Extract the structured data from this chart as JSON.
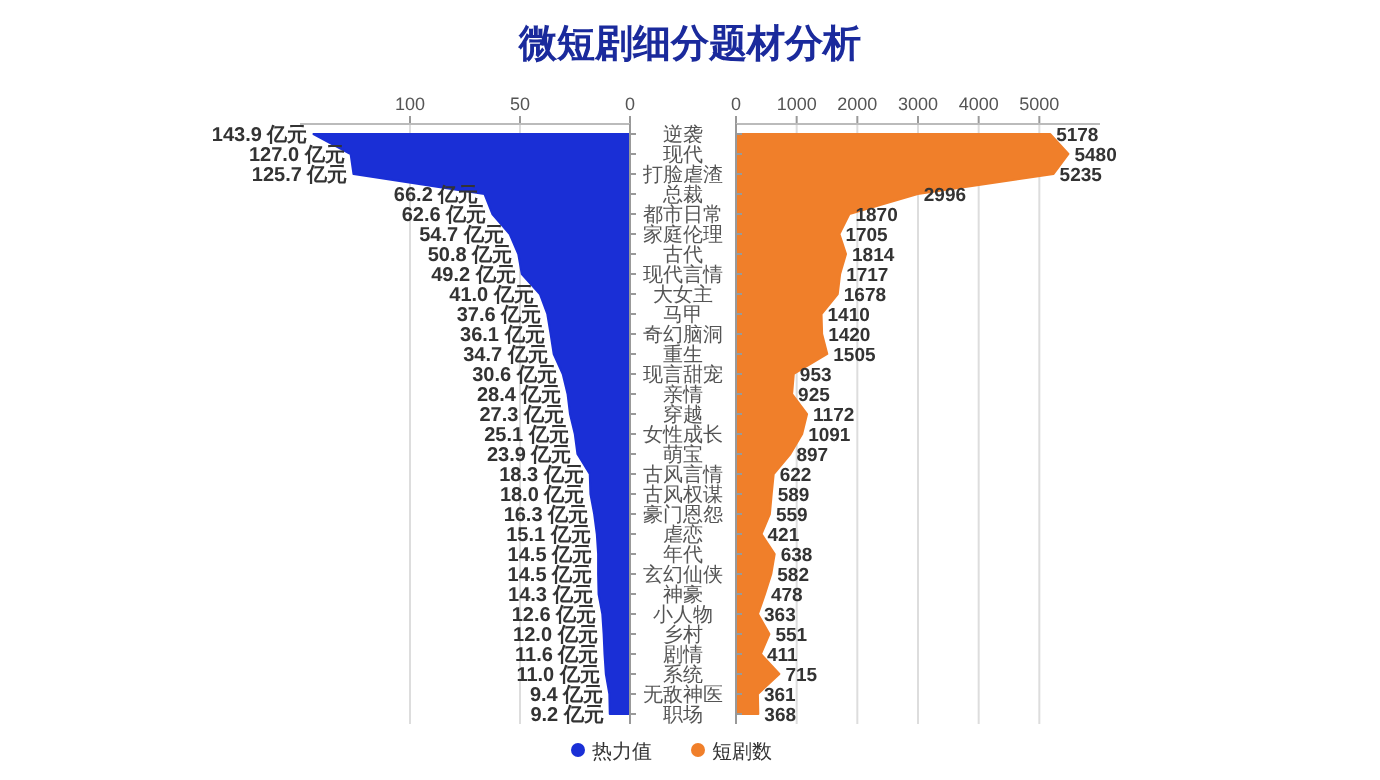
{
  "chart_data": [
    {
      "type": "area",
      "orientation": "horizontal",
      "title": "微短剧细分题材分析",
      "categories": [
        null,
        null,
        null,
        null,
        null,
        null,
        null,
        null,
        null,
        null,
        null,
        null,
        null,
        null,
        null,
        null,
        null,
        null,
        null,
        null,
        null,
        null,
        null,
        null,
        null,
        null,
        null,
        null,
        null,
        null
      ],
      "series": [
        {
          "name": "热力值",
          "color": "#1a2fd6",
          "values": [
            143.9,
            127.0,
            125.7,
            66.2,
            62.6,
            54.7,
            50.8,
            49.2,
            41.0,
            37.6,
            36.1,
            34.7,
            30.6,
            28.4,
            27.3,
            25.1,
            23.9,
            18.3,
            18.0,
            16.3,
            15.1,
            14.5,
            14.5,
            14.3,
            12.6,
            12.0,
            11.6,
            11.0,
            9.4,
            9.2
          ],
          "value_labels": [
            "143.9 亿元",
            "127.0 亿元",
            "125.7 亿元",
            "66.2 亿元",
            "62.6 亿元",
            "54.7 亿元",
            "50.8 亿元",
            "49.2 亿元",
            "41.0 亿元",
            "37.6 亿元",
            "36.1 亿元",
            "34.7 亿元",
            "30.6 亿元",
            "28.4 亿元",
            "27.3 亿元",
            "25.1 亿元",
            "23.9 亿元",
            "18.3 亿元",
            "18.0 亿元",
            "16.3 亿元",
            "15.1 亿元",
            "14.5 亿元",
            "14.5 亿元",
            "14.3 亿元",
            "12.6 亿元",
            "12.0 亿元",
            "11.6 亿元",
            "11.0 亿元",
            "9.4 亿元",
            "9.2 亿元"
          ]
        }
      ],
      "xlim": [
        150,
        0
      ],
      "xticks": [
        0,
        50,
        100
      ],
      "grid": "x",
      "tick_labels": "x",
      "legend": "bottom"
    },
    {
      "type": "area",
      "orientation": "horizontal",
      "categories": [
        "逆袭",
        "现代",
        "打脸虐渣",
        "总裁",
        "都市日常",
        "家庭伦理",
        "古代",
        "现代言情",
        "大女主",
        "马甲",
        "奇幻脑洞",
        "重生",
        "现言甜宠",
        "亲情",
        "穿越",
        "女性成长",
        "萌宝",
        "古风言情",
        "古风权谋",
        "豪门恩怨",
        "虐恋",
        "年代",
        "玄幻仙侠",
        "神豪",
        "小人物",
        "乡村",
        "剧情",
        "系统",
        "无敌神医",
        "职场"
      ],
      "series": [
        {
          "name": "短剧数",
          "color": "#f07f2a",
          "values": [
            5178,
            5480,
            5235,
            2996,
            1870,
            1705,
            1814,
            1717,
            1678,
            1410,
            1420,
            1505,
            953,
            925,
            1172,
            1091,
            897,
            622,
            589,
            559,
            421,
            638,
            582,
            478,
            363,
            551,
            411,
            715,
            361,
            368
          ]
        }
      ],
      "xlim": [
        0,
        6000
      ],
      "xticks": [
        0,
        1000,
        2000,
        3000,
        4000,
        5000
      ],
      "grid": "x",
      "data_labels": true,
      "legend": "bottom"
    }
  ]
}
